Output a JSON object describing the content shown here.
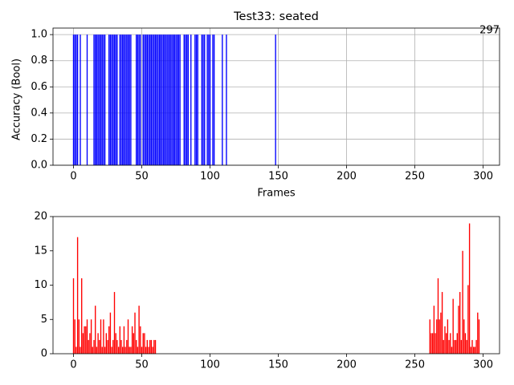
{
  "chart_data": [
    {
      "type": "bar",
      "title": "Test33: seated",
      "xlabel": "Frames",
      "ylabel": "Accuracy (Bool)",
      "annotation": "297",
      "x": [
        0,
        1,
        2,
        3,
        5,
        10,
        15,
        16,
        17,
        18,
        19,
        20,
        21,
        22,
        23,
        26,
        27,
        28,
        29,
        30,
        31,
        32,
        34,
        35,
        36,
        37,
        38,
        39,
        40,
        41,
        42,
        46,
        47,
        48,
        49,
        51,
        52,
        53,
        54,
        55,
        56,
        57,
        58,
        59,
        60,
        61,
        62,
        63,
        64,
        65,
        66,
        67,
        68,
        69,
        70,
        71,
        72,
        73,
        74,
        75,
        76,
        77,
        78,
        81,
        82,
        83,
        84,
        86,
        89,
        90,
        91,
        94,
        95,
        96,
        98,
        99,
        100,
        102,
        103,
        109,
        112,
        148
      ],
      "values": [
        1,
        1,
        1,
        1,
        1,
        1,
        1,
        1,
        1,
        1,
        1,
        1,
        1,
        1,
        1,
        1,
        1,
        1,
        1,
        1,
        1,
        1,
        1,
        1,
        1,
        1,
        1,
        1,
        1,
        1,
        1,
        1,
        1,
        1,
        1,
        1,
        1,
        1,
        1,
        1,
        1,
        1,
        1,
        1,
        1,
        1,
        1,
        1,
        1,
        1,
        1,
        1,
        1,
        1,
        1,
        1,
        1,
        1,
        1,
        1,
        1,
        1,
        1,
        1,
        1,
        1,
        1,
        1,
        1,
        1,
        1,
        1,
        1,
        1,
        1,
        1,
        1,
        1,
        1,
        1,
        1,
        1
      ],
      "color": "#0000ff",
      "xlim": [
        -15,
        312
      ],
      "ylim": [
        0,
        1.05
      ],
      "xticks": [
        0,
        50,
        100,
        150,
        200,
        250,
        300
      ],
      "yticks": [
        {
          "value": 0,
          "label": "0.0"
        },
        0.2,
        0.4,
        0.6,
        0.8,
        {
          "value": 1,
          "label": "1.0"
        }
      ],
      "grid": true
    },
    {
      "type": "bar",
      "x": [
        0,
        1,
        2,
        3,
        4,
        5,
        6,
        7,
        8,
        9,
        10,
        11,
        12,
        13,
        14,
        15,
        16,
        17,
        18,
        19,
        20,
        21,
        22,
        23,
        24,
        25,
        26,
        27,
        28,
        29,
        30,
        31,
        32,
        33,
        34,
        35,
        36,
        37,
        38,
        39,
        40,
        41,
        42,
        43,
        44,
        45,
        46,
        47,
        48,
        49,
        50,
        51,
        52,
        53,
        54,
        55,
        56,
        57,
        58,
        59,
        60,
        261,
        262,
        263,
        264,
        265,
        266,
        267,
        268,
        269,
        270,
        271,
        272,
        273,
        274,
        275,
        276,
        277,
        278,
        279,
        280,
        281,
        282,
        283,
        284,
        285,
        286,
        287,
        288,
        289,
        290,
        291,
        292,
        293,
        294,
        295,
        296,
        297
      ],
      "values": [
        11,
        5,
        1,
        17,
        5,
        1,
        11,
        3,
        4,
        4,
        5,
        2,
        3,
        5,
        1,
        2,
        7,
        1,
        3,
        2,
        5,
        1,
        5,
        1,
        3,
        2,
        4,
        6,
        1,
        2,
        9,
        3,
        2,
        1,
        4,
        2,
        1,
        4,
        1,
        2,
        5,
        1,
        1,
        4,
        3,
        6,
        2,
        1,
        7,
        4,
        1,
        3,
        3,
        1,
        2,
        1,
        2,
        2,
        1,
        2,
        2,
        5,
        3,
        3,
        7,
        3,
        5,
        11,
        5,
        6,
        9,
        2,
        4,
        3,
        5,
        2,
        3,
        1,
        8,
        2,
        2,
        3,
        7,
        9,
        2,
        15,
        5,
        3,
        2,
        10,
        19,
        1,
        2,
        1,
        1,
        2,
        6,
        5
      ],
      "color": "#ff0000",
      "xlim": [
        -15,
        312
      ],
      "ylim": [
        0,
        20
      ],
      "xticks": [
        0,
        50,
        100,
        150,
        200,
        250,
        300
      ],
      "yticks": [
        0,
        5,
        10,
        15,
        20
      ],
      "grid": false
    }
  ]
}
